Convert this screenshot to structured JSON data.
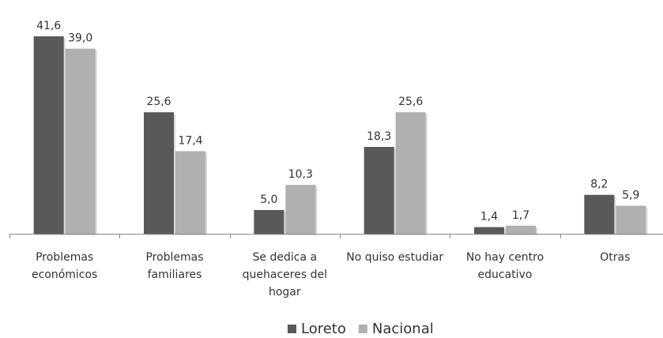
{
  "chart_data": {
    "type": "bar",
    "categories": [
      [
        "Problemas",
        "económicos"
      ],
      [
        "Problemas",
        "familiares"
      ],
      [
        "Se dedica a",
        "quehaceres del",
        "hogar"
      ],
      [
        "No quiso estudiar"
      ],
      [
        "No hay centro",
        "educativo"
      ],
      [
        "Otras"
      ]
    ],
    "series": [
      {
        "name": "Loreto",
        "values": [
          41.6,
          25.6,
          5.0,
          18.3,
          1.4,
          8.2
        ],
        "labels": [
          "41,6",
          "25,6",
          "5,0",
          "18,3",
          "1,4",
          "8,2"
        ],
        "color": "#595959"
      },
      {
        "name": "Nacional",
        "values": [
          39.0,
          17.4,
          10.3,
          25.6,
          1.7,
          5.9
        ],
        "labels": [
          "39,0",
          "17,4",
          "10,3",
          "25,6",
          "1,7",
          "5,9"
        ],
        "color": "#b0b0b0"
      }
    ],
    "ylim": [
      0,
      45
    ],
    "grid": false,
    "legend_position": "bottom"
  }
}
